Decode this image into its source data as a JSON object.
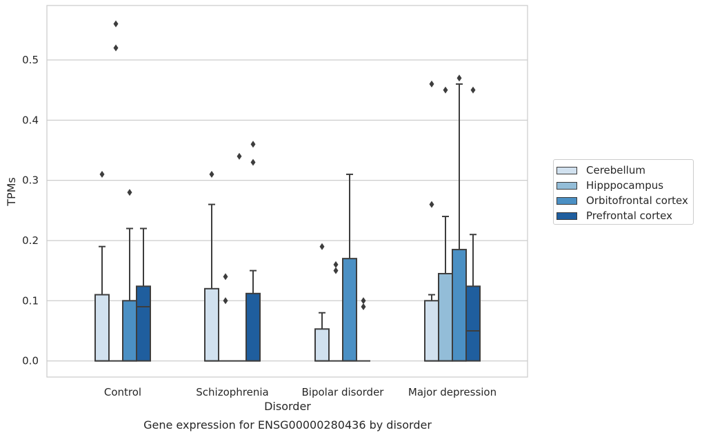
{
  "chart_data": {
    "type": "box",
    "caption": "Gene expression for ENSG00000280436 by disorder",
    "xlabel": "Disorder",
    "ylabel": "TPMs",
    "ylim": [
      -0.028,
      0.59
    ],
    "y_ticks": [
      0.0,
      0.1,
      0.2,
      0.3,
      0.4,
      0.5
    ],
    "y_tick_labels": [
      "0.0",
      "0.1",
      "0.2",
      "0.3",
      "0.4",
      "0.5"
    ],
    "grid": "horizontal",
    "legend_position": "right",
    "categories": [
      "Control",
      "Schizophrenia",
      "Bipolar disorder",
      "Major depression"
    ],
    "series": [
      {
        "name": "Cerebellum",
        "color": "#d1e1ef",
        "boxes": [
          {
            "q1": 0.0,
            "median": 0.0,
            "q3": 0.11,
            "whisker_low": 0.0,
            "whisker_high": 0.19,
            "outliers": [
              0.31
            ]
          },
          {
            "q1": 0.0,
            "median": 0.0,
            "q3": 0.12,
            "whisker_low": 0.0,
            "whisker_high": 0.26,
            "outliers": [
              0.31
            ]
          },
          {
            "q1": 0.0,
            "median": 0.0,
            "q3": 0.053,
            "whisker_low": 0.0,
            "whisker_high": 0.08,
            "outliers": [
              0.19
            ]
          },
          {
            "q1": 0.0,
            "median": 0.0,
            "q3": 0.1,
            "whisker_low": 0.0,
            "whisker_high": 0.11,
            "outliers": [
              0.26,
              0.46
            ]
          }
        ]
      },
      {
        "name": "Hipppocampus",
        "color": "#93bdd8",
        "boxes": [
          {
            "q1": 0.0,
            "median": 0.0,
            "q3": 0.0,
            "whisker_low": 0.0,
            "whisker_high": 0.0,
            "outliers": [
              0.52,
              0.56
            ]
          },
          {
            "q1": 0.0,
            "median": 0.0,
            "q3": 0.0,
            "whisker_low": 0.0,
            "whisker_high": 0.0,
            "outliers": [
              0.1,
              0.14
            ]
          },
          {
            "q1": 0.0,
            "median": 0.0,
            "q3": 0.0,
            "whisker_low": 0.0,
            "whisker_high": 0.0,
            "outliers": [
              0.15,
              0.16
            ]
          },
          {
            "q1": 0.0,
            "median": 0.0,
            "q3": 0.145,
            "whisker_low": 0.0,
            "whisker_high": 0.24,
            "outliers": [
              0.45
            ]
          }
        ]
      },
      {
        "name": "Orbitofrontal cortex",
        "color": "#4b90c4",
        "boxes": [
          {
            "q1": 0.0,
            "median": 0.0,
            "q3": 0.1,
            "whisker_low": 0.0,
            "whisker_high": 0.22,
            "outliers": [
              0.28
            ]
          },
          {
            "q1": 0.0,
            "median": 0.0,
            "q3": 0.0,
            "whisker_low": 0.0,
            "whisker_high": 0.0,
            "outliers": [
              0.34
            ]
          },
          {
            "q1": 0.0,
            "median": 0.0,
            "q3": 0.17,
            "whisker_low": 0.0,
            "whisker_high": 0.31,
            "outliers": []
          },
          {
            "q1": 0.0,
            "median": 0.0,
            "q3": 0.185,
            "whisker_low": 0.0,
            "whisker_high": 0.46,
            "outliers": [
              0.47
            ]
          }
        ]
      },
      {
        "name": "Prefrontal cortex",
        "color": "#1f5e9e",
        "boxes": [
          {
            "q1": 0.0,
            "median": 0.09,
            "q3": 0.124,
            "whisker_low": 0.0,
            "whisker_high": 0.22,
            "outliers": []
          },
          {
            "q1": 0.0,
            "median": 0.0,
            "q3": 0.112,
            "whisker_low": 0.0,
            "whisker_high": 0.15,
            "outliers": [
              0.33,
              0.36
            ]
          },
          {
            "q1": 0.0,
            "median": 0.0,
            "q3": 0.0,
            "whisker_low": 0.0,
            "whisker_high": 0.0,
            "outliers": [
              0.09,
              0.1
            ]
          },
          {
            "q1": 0.0,
            "median": 0.05,
            "q3": 0.124,
            "whisker_low": 0.0,
            "whisker_high": 0.21,
            "outliers": [
              0.45
            ]
          }
        ]
      }
    ]
  }
}
